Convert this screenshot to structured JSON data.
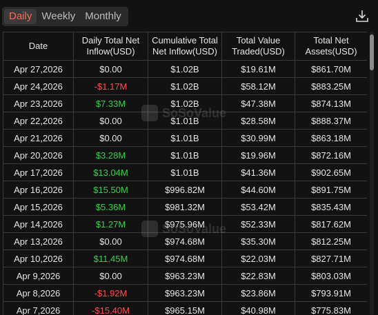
{
  "tabs": [
    {
      "label": "Daily",
      "active": true
    },
    {
      "label": "Weekly",
      "active": false
    },
    {
      "label": "Monthly",
      "active": false
    }
  ],
  "download": {
    "icon": "download-icon"
  },
  "watermark": "SoSoValue",
  "table": {
    "headers": [
      "Date",
      "Daily Total Net Inflow(USD)",
      "Cumulative Total Net Inflow(USD)",
      "Total Value Traded(USD)",
      "Total Net Assets(USD)"
    ],
    "rows": [
      {
        "date": "Apr 27,2026",
        "inflow": "$0.00",
        "inflow_sign": "zero",
        "cumulative": "$1.02B",
        "traded": "$19.61M",
        "assets": "$861.70M"
      },
      {
        "date": "Apr 24,2026",
        "inflow": "-$1.17M",
        "inflow_sign": "neg",
        "cumulative": "$1.02B",
        "traded": "$58.12M",
        "assets": "$883.25M"
      },
      {
        "date": "Apr 23,2026",
        "inflow": "$7.33M",
        "inflow_sign": "pos",
        "cumulative": "$1.02B",
        "traded": "$47.38M",
        "assets": "$874.13M"
      },
      {
        "date": "Apr 22,2026",
        "inflow": "$0.00",
        "inflow_sign": "zero",
        "cumulative": "$1.01B",
        "traded": "$28.58M",
        "assets": "$888.37M"
      },
      {
        "date": "Apr 21,2026",
        "inflow": "$0.00",
        "inflow_sign": "zero",
        "cumulative": "$1.01B",
        "traded": "$30.99M",
        "assets": "$863.18M"
      },
      {
        "date": "Apr 20,2026",
        "inflow": "$3.28M",
        "inflow_sign": "pos",
        "cumulative": "$1.01B",
        "traded": "$19.96M",
        "assets": "$872.16M"
      },
      {
        "date": "Apr 17,2026",
        "inflow": "$13.04M",
        "inflow_sign": "pos",
        "cumulative": "$1.01B",
        "traded": "$41.36M",
        "assets": "$902.65M"
      },
      {
        "date": "Apr 16,2026",
        "inflow": "$15.50M",
        "inflow_sign": "pos",
        "cumulative": "$996.82M",
        "traded": "$44.60M",
        "assets": "$891.75M"
      },
      {
        "date": "Apr 15,2026",
        "inflow": "$5.36M",
        "inflow_sign": "pos",
        "cumulative": "$981.32M",
        "traded": "$53.42M",
        "assets": "$835.43M"
      },
      {
        "date": "Apr 14,2026",
        "inflow": "$1.27M",
        "inflow_sign": "pos",
        "cumulative": "$975.96M",
        "traded": "$52.33M",
        "assets": "$817.62M"
      },
      {
        "date": "Apr 13,2026",
        "inflow": "$0.00",
        "inflow_sign": "zero",
        "cumulative": "$974.68M",
        "traded": "$35.30M",
        "assets": "$812.25M"
      },
      {
        "date": "Apr 10,2026",
        "inflow": "$11.45M",
        "inflow_sign": "pos",
        "cumulative": "$974.68M",
        "traded": "$22.03M",
        "assets": "$827.71M"
      },
      {
        "date": "Apr 9,2026",
        "inflow": "$0.00",
        "inflow_sign": "zero",
        "cumulative": "$963.23M",
        "traded": "$22.83M",
        "assets": "$803.03M"
      },
      {
        "date": "Apr 8,2026",
        "inflow": "-$1.92M",
        "inflow_sign": "neg",
        "cumulative": "$963.23M",
        "traded": "$23.86M",
        "assets": "$793.91M"
      },
      {
        "date": "Apr 7,2026",
        "inflow": "-$15.40M",
        "inflow_sign": "neg",
        "cumulative": "$965.15M",
        "traded": "$40.98M",
        "assets": "$775.83M"
      }
    ]
  },
  "colors": {
    "accent": "#ff6a4d",
    "positive": "#3ccf4e",
    "negative": "#ff4d4d"
  }
}
